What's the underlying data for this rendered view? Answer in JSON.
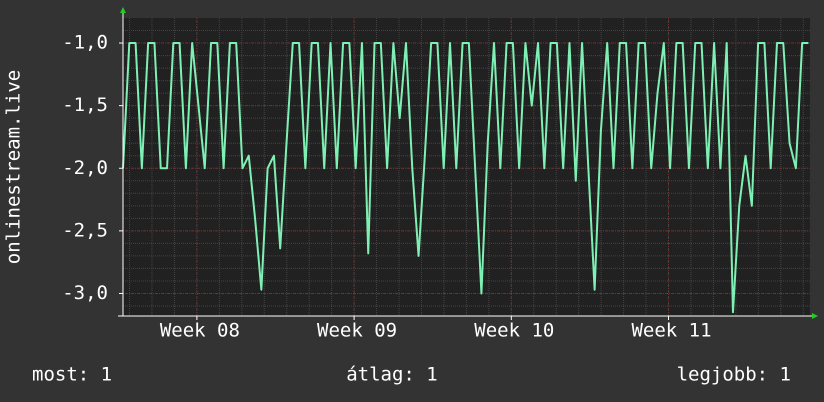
{
  "chart_data": {
    "type": "line",
    "y_label": "onlinestream.live",
    "x": [
      7.53,
      7.57,
      7.61,
      7.65,
      7.69,
      7.73,
      7.77,
      7.81,
      7.85,
      7.89,
      7.93,
      7.97,
      8.01,
      8.05,
      8.09,
      8.13,
      8.17,
      8.21,
      8.25,
      8.29,
      8.33,
      8.37,
      8.41,
      8.45,
      8.49,
      8.53,
      8.57,
      8.61,
      8.65,
      8.69,
      8.73,
      8.77,
      8.81,
      8.85,
      8.89,
      8.93,
      8.97,
      9.01,
      9.05,
      9.09,
      9.13,
      9.17,
      9.21,
      9.25,
      9.29,
      9.33,
      9.37,
      9.41,
      9.45,
      9.49,
      9.53,
      9.57,
      9.61,
      9.65,
      9.69,
      9.73,
      9.77,
      9.81,
      9.85,
      9.89,
      9.93,
      9.97,
      10.01,
      10.05,
      10.09,
      10.13,
      10.17,
      10.21,
      10.25,
      10.29,
      10.33,
      10.37,
      10.41,
      10.45,
      10.49,
      10.53,
      10.57,
      10.61,
      10.65,
      10.69,
      10.73,
      10.77,
      10.81,
      10.85,
      10.89,
      10.93,
      10.97,
      11.01,
      11.05,
      11.09,
      11.13,
      11.17,
      11.21,
      11.25,
      11.29,
      11.33,
      11.37,
      11.41,
      11.45,
      11.49,
      11.53,
      11.57,
      11.61,
      11.65,
      11.69,
      11.73,
      11.77,
      11.81,
      11.85,
      11.89
    ],
    "series": [
      {
        "color": "#7ff0b4",
        "values": [
          -2,
          -1,
          -1,
          -2,
          -1,
          -1,
          -2,
          -2,
          -1,
          -1,
          -2,
          -1,
          -1.5,
          -2,
          -1,
          -1,
          -2,
          -1,
          -1,
          -2,
          -1.9,
          -2.4,
          -2.97,
          -2,
          -1.9,
          -2.64,
          -1.8,
          -1,
          -1,
          -2,
          -1,
          -1,
          -2,
          -1,
          -2,
          -1,
          -1,
          -2,
          -1,
          -2.68,
          -1,
          -1,
          -2,
          -1,
          -1.6,
          -1,
          -2,
          -2.7,
          -1.9,
          -1,
          -1,
          -2,
          -1,
          -2,
          -1,
          -1,
          -2,
          -3.0,
          -1.8,
          -1,
          -2,
          -1,
          -1,
          -2,
          -1,
          -1.5,
          -1,
          -2,
          -1,
          -1,
          -2,
          -1,
          -2.1,
          -1,
          -2,
          -2.97,
          -1.7,
          -1,
          -2,
          -1,
          -1,
          -2,
          -1,
          -1,
          -2,
          -1.4,
          -1,
          -2,
          -1,
          -1,
          -2,
          -1,
          -1,
          -2,
          -1,
          -2,
          -1,
          -3.15,
          -2.3,
          -1.9,
          -2.3,
          -1,
          -1,
          -2,
          -1,
          -1,
          -1.8,
          -2,
          -1,
          -1
        ]
      }
    ],
    "xlim": [
      7.53,
      11.9
    ],
    "xticks": [
      {
        "value": 8,
        "label": "Week 08"
      },
      {
        "value": 9,
        "label": "Week 09"
      },
      {
        "value": 10,
        "label": "Week 10"
      },
      {
        "value": 11,
        "label": "Week 11"
      }
    ],
    "ylim": [
      -3.18,
      -0.8
    ],
    "yticks": [
      {
        "value": -3,
        "label": "-3,0"
      },
      {
        "value": -2.5,
        "label": "-2,5"
      },
      {
        "value": -2,
        "label": "-2,0"
      },
      {
        "value": -1.5,
        "label": "-1,5"
      },
      {
        "value": -1,
        "label": "-1,0"
      }
    ],
    "grid": true
  },
  "footer": {
    "current": "most: 1",
    "average": "átlag: 1",
    "best": "legjobb: 1"
  }
}
